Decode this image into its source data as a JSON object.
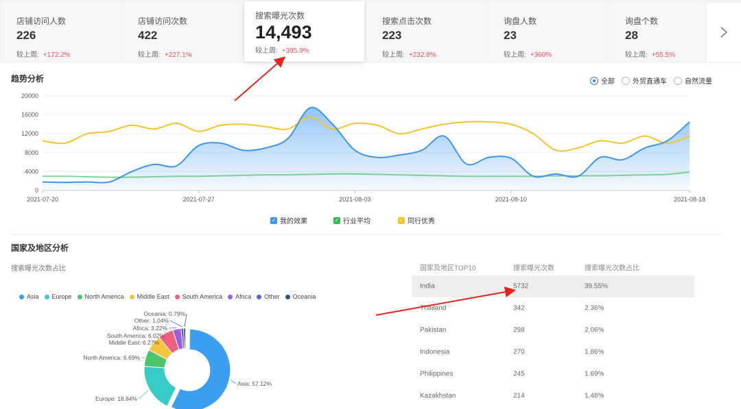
{
  "kpis": [
    {
      "label": "店铺访问人数",
      "value": "226",
      "cmp_label": "较上周:",
      "delta": "+172.2%"
    },
    {
      "label": "店铺访问次数",
      "value": "422",
      "cmp_label": "较上周:",
      "delta": "+227.1%"
    },
    {
      "label": "搜索曝光次数",
      "value": "14,493",
      "cmp_label": "较上周:",
      "delta": "+395.9%"
    },
    {
      "label": "搜索点击次数",
      "value": "223",
      "cmp_label": "较上周:",
      "delta": "+232.8%"
    },
    {
      "label": "询盘人数",
      "value": "23",
      "cmp_label": "较上周:",
      "delta": "+360%"
    },
    {
      "label": "询盘个数",
      "value": "28",
      "cmp_label": "较上周:",
      "delta": "+55.5%"
    }
  ],
  "next_icon": "chevron-right-icon",
  "trend": {
    "title": "趋势分析",
    "filters": [
      "全部",
      "外贸直通车",
      "自然流量"
    ],
    "selected_filter": "全部",
    "legend": [
      "我的效果",
      "行业平均",
      "同行优秀"
    ]
  },
  "region": {
    "title": "国家及地区分析",
    "pie_subtitle": "搜索曝光次数占比",
    "table_headers": [
      "国家及地区TOP10",
      "搜索曝光次数",
      "搜索曝光次数占比"
    ],
    "table_rows": [
      {
        "country": "India",
        "count": "5732",
        "pct": "39.55%"
      },
      {
        "country": "Thailand",
        "count": "342",
        "pct": "2.36%"
      },
      {
        "country": "Pakistan",
        "count": "298",
        "pct": "2.06%"
      },
      {
        "country": "Indonesia",
        "count": "270",
        "pct": "1.86%"
      },
      {
        "country": "Philippines",
        "count": "245",
        "pct": "1.69%"
      },
      {
        "country": "Kazakhstan",
        "count": "214",
        "pct": "1.48%"
      }
    ]
  },
  "chart_data": [
    {
      "type": "area",
      "title": "",
      "xlabel": "",
      "ylabel": "",
      "ylim": [
        0,
        20000
      ],
      "yticks": [
        0,
        4000,
        8000,
        12000,
        16000,
        20000
      ],
      "x_ticks": [
        "2021-07-20",
        "2021-07-27",
        "2021-08-03",
        "2021-08-10",
        "2021-08-18"
      ],
      "x": [
        "07-20",
        "07-21",
        "07-22",
        "07-23",
        "07-24",
        "07-25",
        "07-26",
        "07-27",
        "07-28",
        "07-29",
        "07-30",
        "07-31",
        "08-01",
        "08-02",
        "08-03",
        "08-04",
        "08-05",
        "08-06",
        "08-07",
        "08-08",
        "08-09",
        "08-10",
        "08-11",
        "08-12",
        "08-13",
        "08-14",
        "08-15",
        "08-16",
        "08-17",
        "08-18"
      ],
      "legend_position": "bottom",
      "series": [
        {
          "name": "我的效果",
          "color": "#3a96ef",
          "values": [
            1800,
            1700,
            1800,
            1800,
            4000,
            5500,
            5200,
            9500,
            10000,
            8500,
            9000,
            11000,
            17500,
            14000,
            8500,
            7000,
            7500,
            8500,
            11500,
            5600,
            7000,
            6800,
            3000,
            3500,
            3000,
            7000,
            6500,
            9000,
            10500,
            14500
          ]
        },
        {
          "name": "行业平均",
          "color": "#2bbd4f",
          "values": [
            3000,
            3000,
            2900,
            2800,
            2800,
            2900,
            3000,
            3000,
            3100,
            3200,
            3300,
            3300,
            3400,
            3500,
            3500,
            3400,
            3300,
            3200,
            3100,
            3000,
            3000,
            3000,
            3000,
            3100,
            3100,
            3100,
            3200,
            3300,
            3400,
            3900
          ]
        },
        {
          "name": "同行优秀",
          "color": "#f4c52b",
          "values": [
            10500,
            10000,
            12000,
            12500,
            13800,
            13000,
            14200,
            12500,
            13800,
            14000,
            13500,
            13000,
            15500,
            13000,
            14200,
            13800,
            12000,
            13000,
            14000,
            14500,
            14500,
            14000,
            12000,
            8500,
            9000,
            10500,
            10000,
            11500,
            10000,
            11500
          ]
        }
      ]
    },
    {
      "type": "pie",
      "title": "",
      "categories": [
        "Asia",
        "Europe",
        "North America",
        "Middle East",
        "South America",
        "Africa",
        "Other",
        "Oceania"
      ],
      "values": [
        57.12,
        18.84,
        6.69,
        6.27,
        6.02,
        3.22,
        1.04,
        0.79
      ],
      "slice_labels": [
        "Asia: 57.12%",
        "Europe: 18.84%",
        "North America: 6.69%",
        "Middle East: 6.27%",
        "South America: 6.02%",
        "Africa: 3.22%",
        "Other: 1.04%",
        "Oceania: 0.79%"
      ],
      "colors": [
        "#3a9ff0",
        "#36cdc9",
        "#4cc46a",
        "#f5c63b",
        "#ef5f7e",
        "#9d5fe0",
        "#5a5fd0",
        "#35508c"
      ],
      "legend_position": "top-left"
    }
  ]
}
